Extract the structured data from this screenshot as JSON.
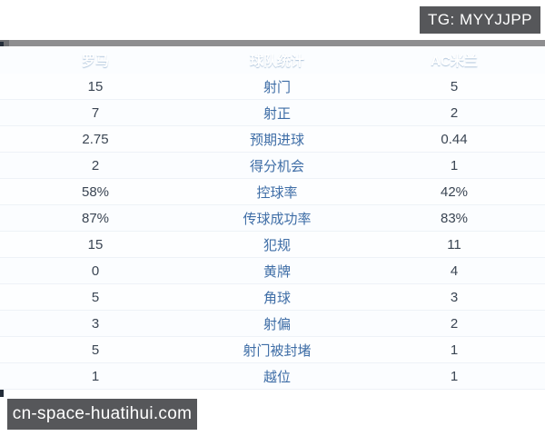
{
  "badges": {
    "tg": "TG: MYYJJPP",
    "watermark": "cn-space-huatihui.com"
  },
  "colors": {
    "header_bg": "#459fe9",
    "badge_bg": "#56575a",
    "label_color": "#3e6da6",
    "value_color": "#3a4553",
    "frame_strip": "#8e8e90",
    "left_edge": "#242d39"
  },
  "table": {
    "header": {
      "left": "罗马",
      "center": "球队统计",
      "right": "AC米兰"
    },
    "rows": [
      {
        "left": "15",
        "label": "射门",
        "right": "5"
      },
      {
        "left": "7",
        "label": "射正",
        "right": "2"
      },
      {
        "left": "2.75",
        "label": "预期进球",
        "right": "0.44"
      },
      {
        "left": "2",
        "label": "得分机会",
        "right": "1"
      },
      {
        "left": "58%",
        "label": "控球率",
        "right": "42%"
      },
      {
        "left": "87%",
        "label": "传球成功率",
        "right": "83%"
      },
      {
        "left": "15",
        "label": "犯规",
        "right": "11"
      },
      {
        "left": "0",
        "label": "黄牌",
        "right": "4"
      },
      {
        "left": "5",
        "label": "角球",
        "right": "3"
      },
      {
        "left": "3",
        "label": "射偏",
        "right": "2"
      },
      {
        "left": "5",
        "label": "射门被封堵",
        "right": "1"
      },
      {
        "left": "1",
        "label": "越位",
        "right": "1"
      }
    ]
  },
  "chart_data": {
    "type": "table",
    "title": "球队统计",
    "columns": [
      "罗马",
      "球队统计",
      "AC米兰"
    ],
    "rows": [
      [
        "15",
        "射门",
        "5"
      ],
      [
        "7",
        "射正",
        "2"
      ],
      [
        "2.75",
        "预期进球",
        "0.44"
      ],
      [
        "2",
        "得分机会",
        "1"
      ],
      [
        "58%",
        "控球率",
        "42%"
      ],
      [
        "87%",
        "传球成功率",
        "83%"
      ],
      [
        "15",
        "犯规",
        "11"
      ],
      [
        "0",
        "黄牌",
        "4"
      ],
      [
        "5",
        "角球",
        "3"
      ],
      [
        "3",
        "射偏",
        "2"
      ],
      [
        "5",
        "射门被封堵",
        "1"
      ],
      [
        "1",
        "越位",
        "1"
      ]
    ]
  }
}
